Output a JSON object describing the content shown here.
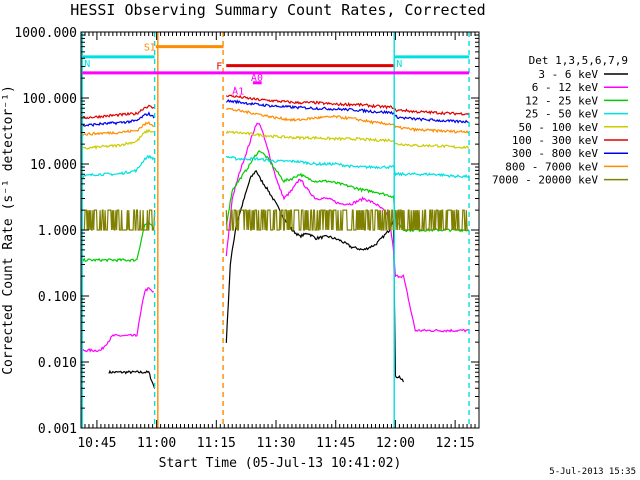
{
  "chart_data": {
    "type": "line",
    "title": "HESSI Observing Summary Count Rates, Corrected",
    "xlabel": "Start Time (05-Jul-13 10:41:02)",
    "ylabel": "Corrected Count Rate (s⁻¹ detector⁻¹)",
    "yscale": "log",
    "ylim": [
      0.001,
      1000
    ],
    "xlim_min": [
      41,
      141
    ],
    "x_ticks": [
      {
        "min": 45,
        "label": "10:45"
      },
      {
        "min": 60,
        "label": "11:00"
      },
      {
        "min": 75,
        "label": "11:15"
      },
      {
        "min": 90,
        "label": "11:30"
      },
      {
        "min": 105,
        "label": "11:45"
      },
      {
        "min": 120,
        "label": "12:00"
      },
      {
        "min": 135,
        "label": "12:15"
      }
    ],
    "y_ticks": [
      {
        "value": 1000,
        "label": "1000.000"
      },
      {
        "value": 100,
        "label": "100.000"
      },
      {
        "value": 10,
        "label": "10.000"
      },
      {
        "value": 1,
        "label": "1.000"
      },
      {
        "value": 0.1,
        "label": "0.100"
      },
      {
        "value": 0.01,
        "label": "0.010"
      },
      {
        "value": 0.001,
        "label": "0.001"
      }
    ],
    "legend": {
      "header": "Det 1,3,5,6,7,9",
      "placement": "right"
    },
    "timestamp": "5-Jul-2013 15:35",
    "vertical_markers": [
      {
        "min": 41.3,
        "color": "#00e0e0",
        "style": "solid"
      },
      {
        "min": 59.5,
        "color": "#00e0e0",
        "style": "dashed"
      },
      {
        "min": 60.3,
        "color": "#ff8c00",
        "style": "solid"
      },
      {
        "min": 76.7,
        "color": "#ff8c00",
        "style": "dashed"
      },
      {
        "min": 119.7,
        "color": "#00e0e0",
        "style": "solid"
      },
      {
        "min": 138.5,
        "color": "#00e0e0",
        "style": "dashed"
      }
    ],
    "flag_bars": [
      {
        "label": "SI",
        "color": "#ff8c00",
        "x0": 59.8,
        "x1": 76.8,
        "y": 600
      },
      {
        "label": "N",
        "color": "#00e0e0",
        "x0": 41.3,
        "x1": 59.5,
        "y": 420
      },
      {
        "label": "N",
        "color": "#00e0e0",
        "x0": 119.7,
        "x1": 138.5,
        "y": 420
      },
      {
        "label": "F",
        "color": "#e00000",
        "x0": 77.5,
        "x1": 119.5,
        "y": 310
      },
      {
        "label": "",
        "color": "#ff00ff",
        "x0": 41.3,
        "x1": 138.5,
        "y": 240
      },
      {
        "label": "A0",
        "color": "#ff00ff",
        "x0": 84.2,
        "x1": 86.4,
        "y": 170
      },
      {
        "label": "A1",
        "color": "#ff00ff",
        "x0": 79.5,
        "x1": 79.5,
        "y": 140
      }
    ],
    "series": [
      {
        "name": "3 - 6 keV",
        "color": "#000000",
        "x": [
          48,
          52,
          55,
          58,
          59.5,
          77.5,
          78.5,
          80,
          82,
          83.5,
          85,
          86,
          88,
          90,
          92,
          94,
          96,
          98,
          100,
          103,
          106,
          109,
          112,
          115,
          117,
          118.5,
          119.5,
          120,
          121,
          122
        ],
        "y": [
          0.007,
          0.007,
          0.007,
          0.007,
          0.004,
          0.02,
          0.3,
          1.2,
          3.0,
          6.0,
          8.0,
          6.0,
          4.0,
          2.5,
          1.5,
          1.0,
          0.8,
          0.9,
          0.75,
          0.8,
          0.7,
          0.55,
          0.5,
          0.6,
          0.8,
          1.0,
          1.5,
          0.006,
          0.006,
          0.005
        ]
      },
      {
        "name": "6 - 12 keV",
        "color": "#ff00ff",
        "x": [
          41.3,
          46,
          49,
          52,
          55,
          57,
          58,
          59.5,
          77.5,
          79,
          81,
          83,
          85,
          86,
          87.5,
          89,
          90.5,
          92,
          94,
          96,
          98,
          100,
          103,
          106,
          109,
          112,
          115,
          117,
          118.5,
          119.5,
          120,
          121,
          122,
          125,
          130,
          135,
          138.5
        ],
        "y": [
          0.015,
          0.015,
          0.025,
          0.025,
          0.025,
          0.12,
          0.13,
          0.11,
          0.4,
          3.0,
          8.0,
          18.0,
          40.0,
          40.0,
          20.0,
          10.0,
          5.0,
          3.0,
          4.0,
          6.0,
          4.0,
          3.0,
          3.0,
          2.5,
          2.5,
          3.0,
          2.5,
          2.0,
          1.5,
          0.5,
          0.2,
          0.2,
          0.2,
          0.03,
          0.03,
          0.03,
          0.03
        ]
      },
      {
        "name": "12 - 25 keV",
        "color": "#00cc00",
        "x": [
          41.3,
          45,
          50,
          55,
          57,
          58,
          59.5,
          77.5,
          79,
          81,
          83,
          85,
          86,
          88,
          90,
          92,
          94,
          96,
          98,
          100,
          103,
          106,
          109,
          112,
          115,
          117,
          119.5,
          120,
          122,
          125,
          130,
          135,
          138.5
        ],
        "y": [
          0.35,
          0.35,
          0.35,
          0.35,
          1.2,
          1.3,
          1.0,
          1.2,
          4.0,
          6.0,
          9.0,
          14.0,
          16.0,
          12.0,
          8.0,
          5.5,
          6.0,
          7.0,
          6.0,
          5.5,
          5.5,
          5.0,
          4.5,
          4.0,
          3.8,
          3.5,
          3.2,
          1.5,
          1.0,
          1.0,
          1.0,
          1.0,
          1.0
        ]
      },
      {
        "name": "25 - 50 keV",
        "color": "#00e0e0",
        "x": [
          41.3,
          45,
          50,
          55,
          57,
          58,
          59.5,
          77.5,
          80,
          85,
          90,
          95,
          100,
          105,
          110,
          115,
          119.5,
          120,
          122,
          125,
          130,
          135,
          138.5
        ],
        "y": [
          6.5,
          7.0,
          7.0,
          8.0,
          12.0,
          13.0,
          12.0,
          13.0,
          12.0,
          12.0,
          11.0,
          11.0,
          10.0,
          10.0,
          9.0,
          9.0,
          9.0,
          7.0,
          7.0,
          7.0,
          7.0,
          6.5,
          6.5
        ]
      },
      {
        "name": "50 - 100 keV",
        "color": "#cccc00",
        "x": [
          41.3,
          45,
          50,
          55,
          57,
          58,
          59.5,
          77.5,
          80,
          85,
          90,
          95,
          100,
          105,
          110,
          115,
          119.5,
          120,
          122,
          125,
          130,
          135,
          138.5
        ],
        "y": [
          17.0,
          18.0,
          19.0,
          22.0,
          30.0,
          32.0,
          30.0,
          30.0,
          30.0,
          28.0,
          26.0,
          25.0,
          25.0,
          24.0,
          24.0,
          23.0,
          23.0,
          20.0,
          20.0,
          19.0,
          19.0,
          18.0,
          18.0
        ]
      },
      {
        "name": "100 - 300 keV",
        "color": "#e00000",
        "x": [
          41.3,
          45,
          50,
          55,
          57,
          58,
          59.5,
          77.5,
          80,
          85,
          90,
          95,
          100,
          105,
          110,
          115,
          119.5,
          120,
          122,
          125,
          130,
          135,
          138.5
        ],
        "y": [
          50.0,
          52.0,
          55.0,
          58.0,
          72.0,
          75.0,
          70.0,
          110.0,
          105.0,
          95.0,
          90.0,
          85.0,
          85.0,
          80.0,
          80.0,
          75.0,
          72.0,
          65.0,
          65.0,
          62.0,
          60.0,
          58.0,
          58.0
        ]
      },
      {
        "name": "300 - 800 keV",
        "color": "#0000ee",
        "x": [
          41.3,
          45,
          50,
          55,
          57,
          58,
          59.5,
          77.5,
          80,
          85,
          90,
          95,
          100,
          105,
          110,
          115,
          119.5,
          120,
          122,
          125,
          130,
          135,
          138.5
        ],
        "y": [
          38.0,
          40.0,
          42.0,
          45.0,
          55.0,
          58.0,
          50.0,
          90.0,
          88.0,
          80.0,
          75.0,
          72.0,
          70.0,
          68.0,
          66.0,
          62.0,
          60.0,
          52.0,
          50.0,
          48.0,
          46.0,
          44.0,
          44.0
        ]
      },
      {
        "name": "800 - 7000 keV",
        "color": "#ff8c00",
        "x": [
          41.3,
          45,
          50,
          55,
          57,
          58,
          59.5,
          77.5,
          80,
          85,
          90,
          95,
          100,
          105,
          110,
          115,
          119.5,
          120,
          122,
          125,
          130,
          135,
          138.5
        ],
        "y": [
          28.0,
          29.0,
          30.0,
          32.0,
          40.0,
          42.0,
          38.0,
          70.0,
          65.0,
          58.0,
          50.0,
          46.0,
          50.0,
          52.0,
          48.0,
          42.0,
          40.0,
          36.0,
          35.0,
          33.0,
          32.0,
          31.0,
          31.0
        ]
      },
      {
        "name": "7000 - 20000 keV",
        "color": "#808000",
        "x": [
          41.3,
          59.5,
          77.5,
          119.5,
          120,
          138.5
        ],
        "y": [
          1.5,
          1.5,
          1.5,
          1.5,
          1.5,
          1.5
        ],
        "noise": true
      }
    ]
  }
}
